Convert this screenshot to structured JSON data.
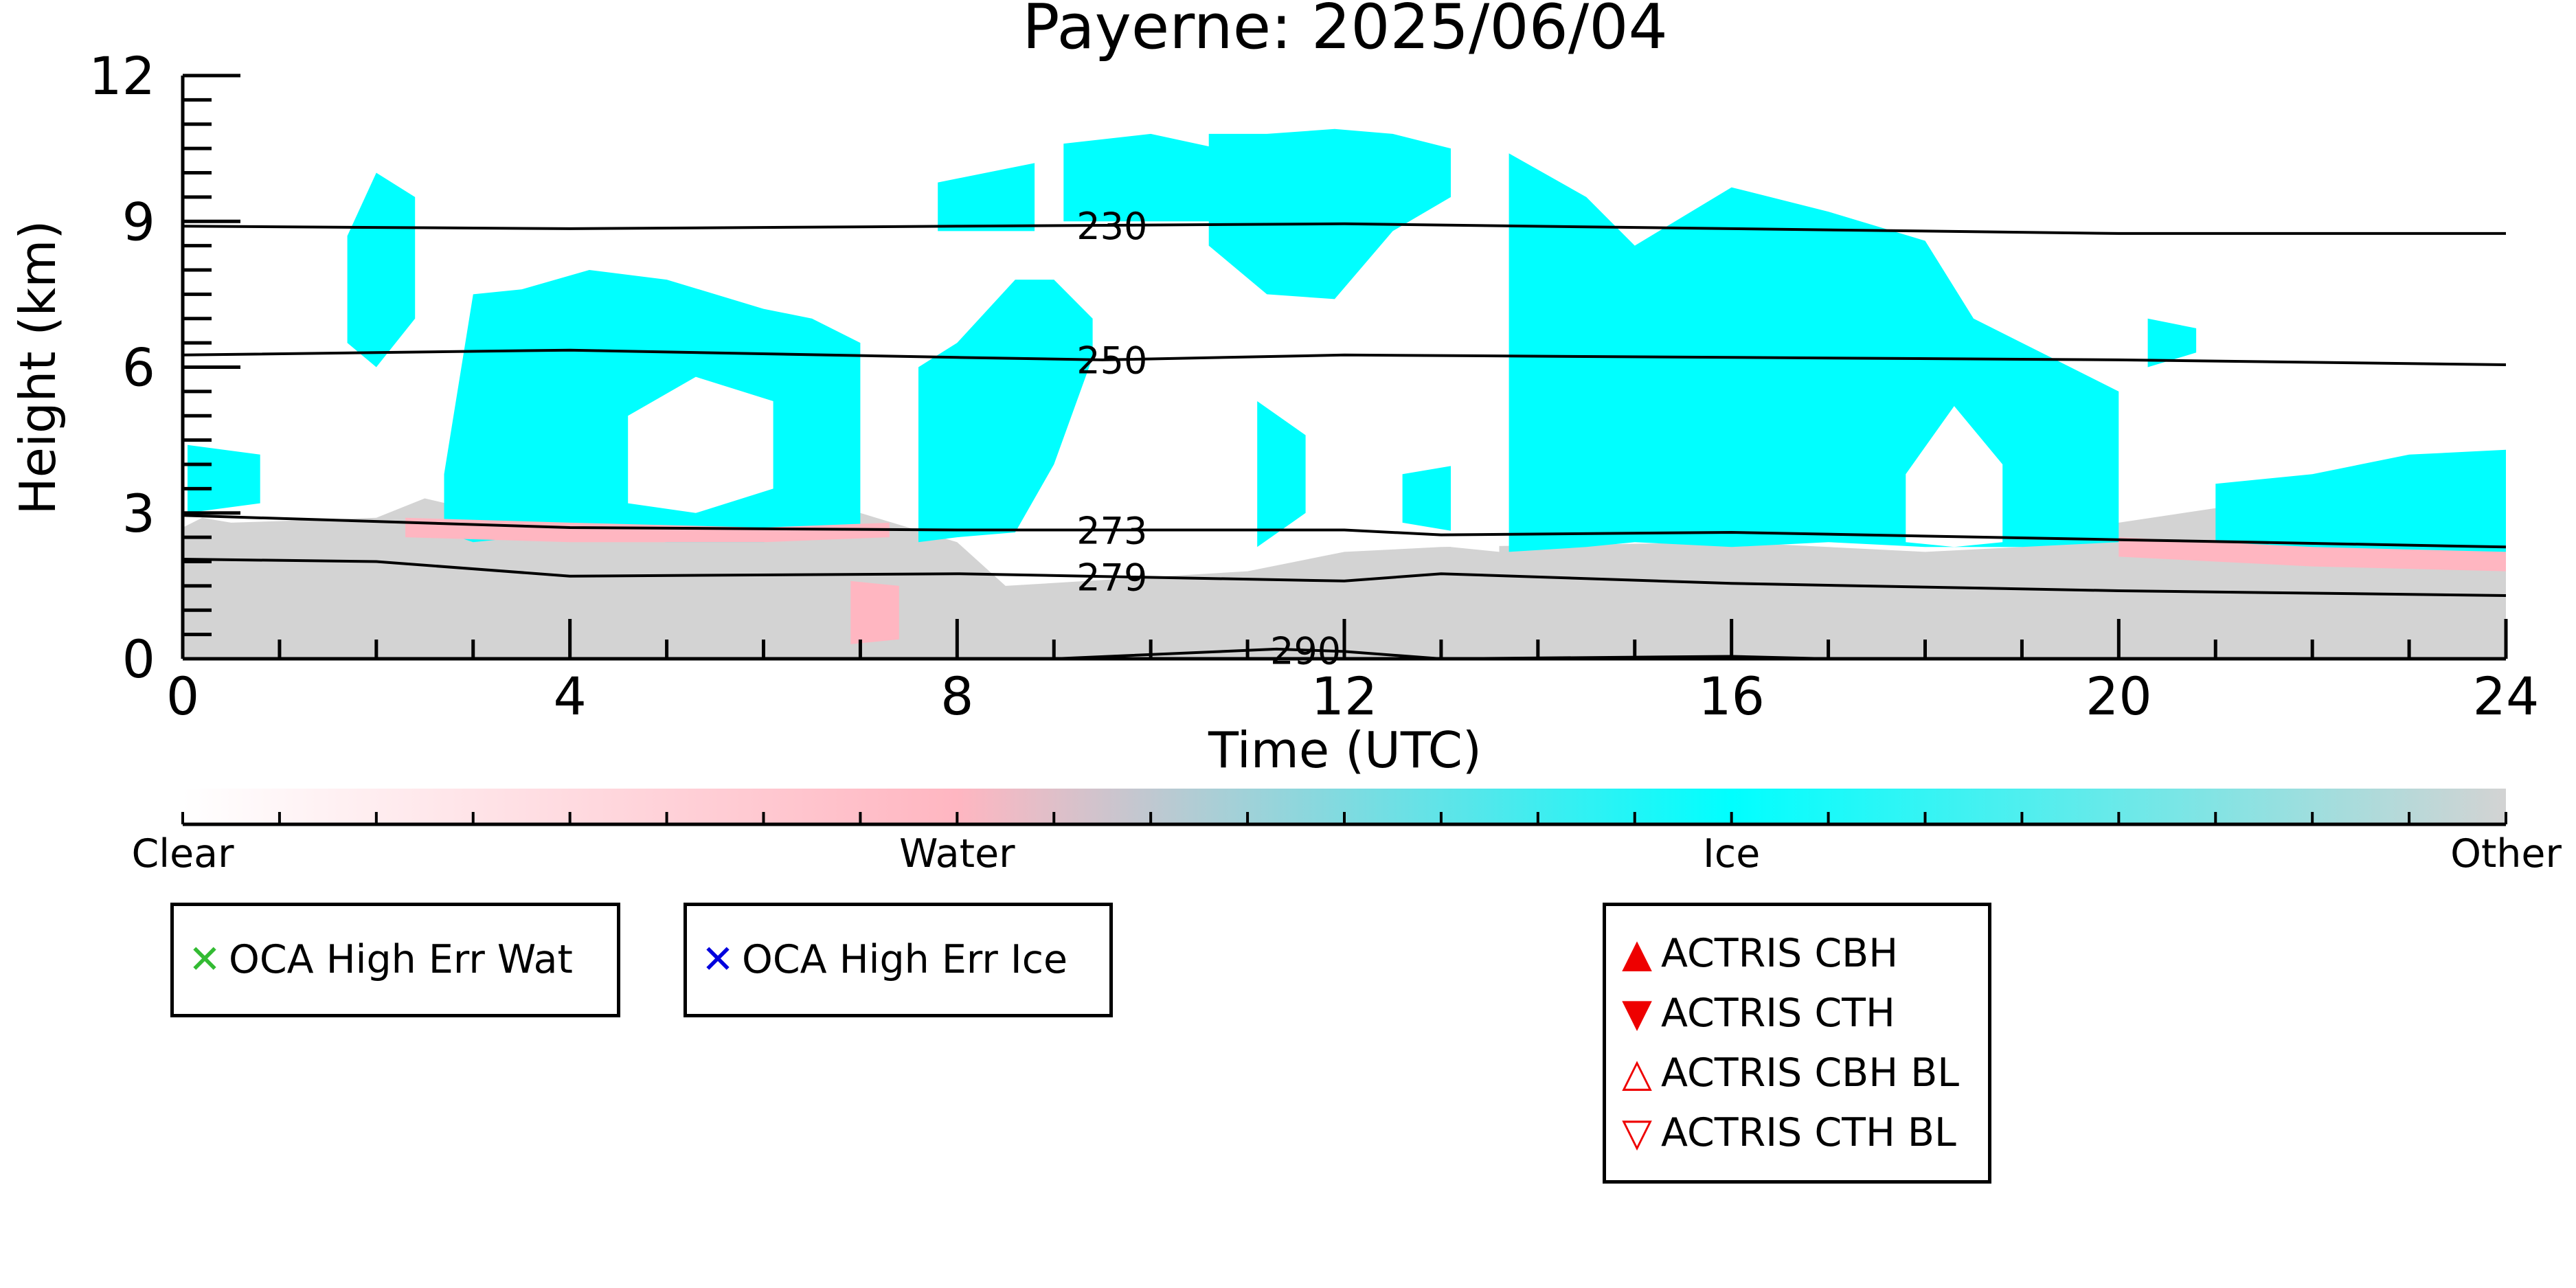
{
  "chart_data": {
    "type": "heatmap",
    "title": "Payerne: 2025/06/04",
    "xlabel": "Time (UTC)",
    "ylabel": "Height (km)",
    "xlim": [
      0,
      24
    ],
    "ylim": [
      0,
      12
    ],
    "x_ticks": [
      "0",
      "4",
      "8",
      "12",
      "16",
      "20",
      "24"
    ],
    "y_ticks": [
      "0",
      "3",
      "6",
      "9",
      "12"
    ],
    "categories": [
      "Clear",
      "Water",
      "Ice",
      "Other"
    ],
    "colors": {
      "Clear": "#ffffff",
      "Water": "#ffb6c1",
      "Ice": "#00ffff",
      "Other": "#d3d3d3"
    },
    "isotherms": [
      {
        "label": "230",
        "label_x": 9.6,
        "points": [
          [
            0,
            8.9
          ],
          [
            4,
            8.85
          ],
          [
            8,
            8.9
          ],
          [
            12,
            8.95
          ],
          [
            16,
            8.85
          ],
          [
            20,
            8.75
          ],
          [
            24,
            8.75
          ]
        ]
      },
      {
        "label": "250",
        "label_x": 9.6,
        "points": [
          [
            0,
            6.25
          ],
          [
            4,
            6.35
          ],
          [
            8,
            6.2
          ],
          [
            9.5,
            6.15
          ],
          [
            12,
            6.25
          ],
          [
            16,
            6.2
          ],
          [
            20,
            6.15
          ],
          [
            24,
            6.05
          ]
        ]
      },
      {
        "label": "273",
        "label_x": 9.6,
        "points": [
          [
            0,
            2.95
          ],
          [
            4,
            2.7
          ],
          [
            8,
            2.65
          ],
          [
            12,
            2.65
          ],
          [
            13,
            2.55
          ],
          [
            16,
            2.6
          ],
          [
            20,
            2.45
          ],
          [
            24,
            2.3
          ]
        ]
      },
      {
        "label": "279",
        "label_x": 9.6,
        "points": [
          [
            0,
            2.05
          ],
          [
            2,
            2.0
          ],
          [
            4,
            1.7
          ],
          [
            8,
            1.75
          ],
          [
            12,
            1.6
          ],
          [
            13,
            1.75
          ],
          [
            16,
            1.55
          ],
          [
            20,
            1.4
          ],
          [
            24,
            1.3
          ]
        ]
      },
      {
        "label": "290",
        "label_x": 11.6,
        "points": [
          [
            9,
            0.0
          ],
          [
            11.3,
            0.2
          ],
          [
            12,
            0.15
          ],
          [
            13,
            0.0
          ],
          [
            16,
            0.05
          ],
          [
            17,
            0.0
          ]
        ]
      }
    ],
    "regions": [
      {
        "cls": "Other",
        "x0": 0,
        "x1": 24,
        "bands": [
          [
            0,
            2.7
          ],
          [
            0.2,
            2.9
          ],
          [
            0.5,
            2.8
          ],
          [
            2,
            2.9
          ],
          [
            2.5,
            3.3
          ],
          [
            4,
            2.6
          ],
          [
            6,
            2.9
          ],
          [
            7,
            3.0
          ],
          [
            8,
            2.4
          ],
          [
            8.5,
            1.5
          ],
          [
            11,
            1.8
          ],
          [
            12,
            2.2
          ],
          [
            13,
            2.3
          ],
          [
            16,
            2.4
          ],
          [
            18,
            2.2
          ],
          [
            19,
            2.3
          ],
          [
            20,
            2.8
          ],
          [
            21,
            3.1
          ],
          [
            22,
            3.2
          ],
          [
            24,
            3.6
          ]
        ]
      },
      {
        "cls": "Ice",
        "x0": 0.05,
        "x1": 0.8,
        "bands": [
          [
            0.05,
            3.0,
            4.4
          ],
          [
            0.8,
            3.2,
            4.2
          ]
        ]
      },
      {
        "cls": "Ice",
        "x0": 1.7,
        "x1": 2.4,
        "bands": [
          [
            1.7,
            6.5,
            8.7
          ],
          [
            2.0,
            6.0,
            10.0
          ],
          [
            2.4,
            7.0,
            9.5
          ]
        ]
      },
      {
        "cls": "Ice",
        "x0": 2.7,
        "x1": 7.0,
        "bands": [
          [
            2.7,
            2.6,
            3.8
          ],
          [
            3.0,
            2.4,
            7.5
          ],
          [
            3.5,
            2.5,
            7.6
          ],
          [
            4.2,
            2.5,
            8.0
          ],
          [
            5.0,
            2.4,
            7.8
          ],
          [
            6.0,
            2.4,
            7.2
          ],
          [
            6.5,
            2.5,
            7.0
          ],
          [
            7.0,
            2.5,
            6.5
          ]
        ]
      },
      {
        "cls": "Ice",
        "x0": 7.6,
        "x1": 9.4,
        "bands": [
          [
            7.6,
            2.4,
            6.0
          ],
          [
            8.0,
            2.5,
            6.5
          ],
          [
            8.6,
            2.6,
            7.8
          ],
          [
            9.0,
            4.0,
            7.8
          ],
          [
            9.4,
            6.2,
            7.0
          ]
        ]
      },
      {
        "cls": "Ice",
        "x0": 7.8,
        "x1": 8.8,
        "bands": [
          [
            7.8,
            8.8,
            9.8
          ],
          [
            8.8,
            8.8,
            10.2
          ]
        ]
      },
      {
        "cls": "Ice",
        "x0": 9.1,
        "x1": 10.7,
        "bands": [
          [
            9.1,
            9.0,
            10.6
          ],
          [
            10.0,
            9.0,
            10.8
          ],
          [
            10.7,
            9.0,
            10.5
          ]
        ]
      },
      {
        "cls": "Ice",
        "x0": 10.6,
        "x1": 13.1,
        "bands": [
          [
            10.6,
            8.5,
            10.8
          ],
          [
            11.2,
            7.5,
            10.8
          ],
          [
            11.9,
            7.4,
            10.9
          ],
          [
            12.5,
            8.8,
            10.8
          ],
          [
            13.1,
            9.5,
            10.5
          ]
        ]
      },
      {
        "cls": "Ice",
        "x0": 11.1,
        "x1": 11.6,
        "bands": [
          [
            11.1,
            2.3,
            5.3
          ],
          [
            11.6,
            3.0,
            4.6
          ]
        ]
      },
      {
        "cls": "Ice",
        "x0": 12.6,
        "x1": 13.2,
        "bands": [
          [
            12.6,
            2.8,
            3.8
          ],
          [
            13.2,
            2.6,
            4.0
          ]
        ]
      },
      {
        "cls": "Ice",
        "x0": 13.7,
        "x1": 20.0,
        "bands": [
          [
            13.7,
            2.2,
            10.4
          ],
          [
            14.5,
            2.3,
            9.5
          ],
          [
            15.0,
            2.4,
            8.5
          ],
          [
            16.0,
            2.3,
            9.7
          ],
          [
            17.0,
            2.4,
            9.2
          ],
          [
            18.0,
            2.3,
            8.6
          ],
          [
            18.5,
            2.3,
            7.0
          ],
          [
            19.0,
            2.3,
            6.5
          ],
          [
            20.0,
            2.4,
            5.5
          ]
        ]
      },
      {
        "cls": "Ice",
        "x0": 20.3,
        "x1": 20.8,
        "bands": [
          [
            20.3,
            6.0,
            7.0
          ],
          [
            20.8,
            6.3,
            6.8
          ]
        ]
      },
      {
        "cls": "Ice",
        "x0": 21.0,
        "x1": 24.0,
        "bands": [
          [
            21.0,
            2.2,
            3.6
          ],
          [
            22.0,
            2.0,
            3.8
          ],
          [
            23.0,
            1.9,
            4.2
          ],
          [
            24.0,
            1.9,
            4.3
          ]
        ]
      },
      {
        "cls": "Clear",
        "x0": 4.6,
        "x1": 6.1,
        "bands": [
          [
            4.6,
            3.2,
            5.0
          ],
          [
            5.3,
            3.0,
            5.8
          ],
          [
            6.1,
            3.5,
            5.3
          ]
        ]
      },
      {
        "cls": "Clear",
        "x0": 17.8,
        "x1": 18.8,
        "bands": [
          [
            17.8,
            2.4,
            3.8
          ],
          [
            18.3,
            2.3,
            5.2
          ],
          [
            18.8,
            2.4,
            4.0
          ]
        ]
      },
      {
        "cls": "Clear",
        "x0": 13.1,
        "x1": 13.6,
        "bands": [
          [
            13.1,
            2.3,
            9.8
          ],
          [
            13.6,
            2.2,
            9.8
          ]
        ]
      },
      {
        "cls": "Water",
        "x0": 2.3,
        "x1": 7.3,
        "bands": [
          [
            2.3,
            2.5,
            2.9
          ],
          [
            4.0,
            2.4,
            2.8
          ],
          [
            6.0,
            2.4,
            2.7
          ],
          [
            7.3,
            2.5,
            2.8
          ]
        ]
      },
      {
        "cls": "Water",
        "x0": 20.0,
        "x1": 24.0,
        "bands": [
          [
            20.0,
            2.1,
            2.5
          ],
          [
            22.0,
            1.9,
            2.3
          ],
          [
            24.0,
            1.8,
            2.2
          ]
        ]
      },
      {
        "cls": "Water",
        "x0": 6.9,
        "x1": 7.4,
        "bands": [
          [
            6.9,
            0.3,
            1.6
          ],
          [
            7.4,
            0.4,
            1.5
          ]
        ]
      }
    ]
  },
  "colorbar": {
    "labels": [
      "Clear",
      "Water",
      "Ice",
      "Other"
    ],
    "stops": [
      "#ffffff",
      "#ffb6c1",
      "#00ffff",
      "#d3d3d3"
    ]
  },
  "legends": {
    "oca_water": {
      "label": "OCA High Err Wat",
      "marker": "✕",
      "color": "#33bb33"
    },
    "oca_ice": {
      "label": "OCA High Err Ice",
      "marker": "✕",
      "color": "#0000dd"
    },
    "actris": [
      {
        "label": "ACTRIS CBH",
        "marker": "▲",
        "color": "#ee0000"
      },
      {
        "label": "ACTRIS CTH",
        "marker": "▼",
        "color": "#ee0000"
      },
      {
        "label": "ACTRIS CBH BL",
        "marker": "△",
        "color": "#ee0000"
      },
      {
        "label": "ACTRIS CTH BL",
        "marker": "▽",
        "color": "#ee0000"
      }
    ]
  }
}
